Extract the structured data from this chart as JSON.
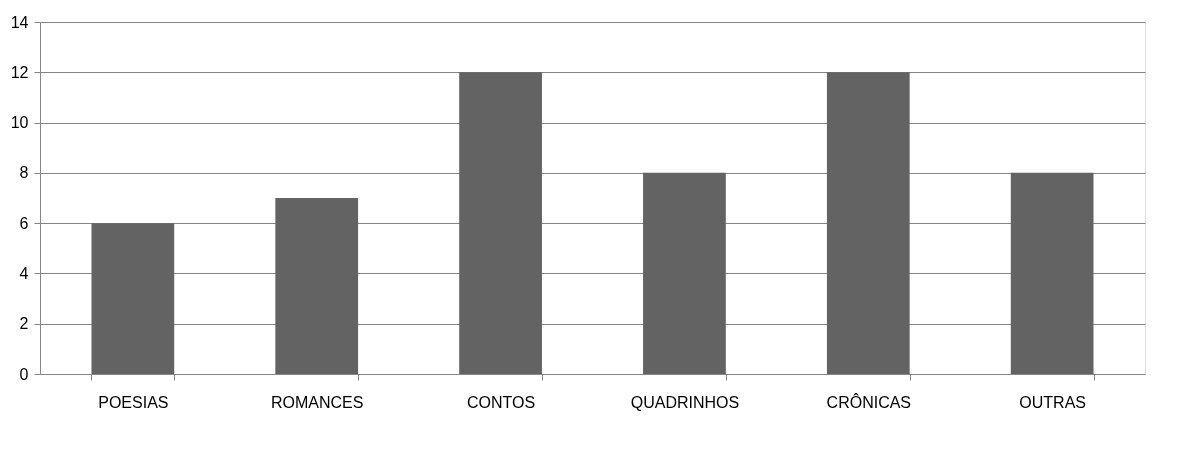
{
  "chart_data": {
    "type": "bar",
    "categories": [
      "POESIAS",
      "ROMANCES",
      "CONTOS",
      "QUADRINHOS",
      "CRÔNICAS",
      "OUTRAS"
    ],
    "values": [
      6,
      7,
      12,
      8,
      12,
      8
    ],
    "color": "#636363",
    "ylim": [
      0,
      14
    ],
    "yticks": [
      0,
      2,
      4,
      6,
      8,
      10,
      12,
      14
    ],
    "grid": "y"
  }
}
